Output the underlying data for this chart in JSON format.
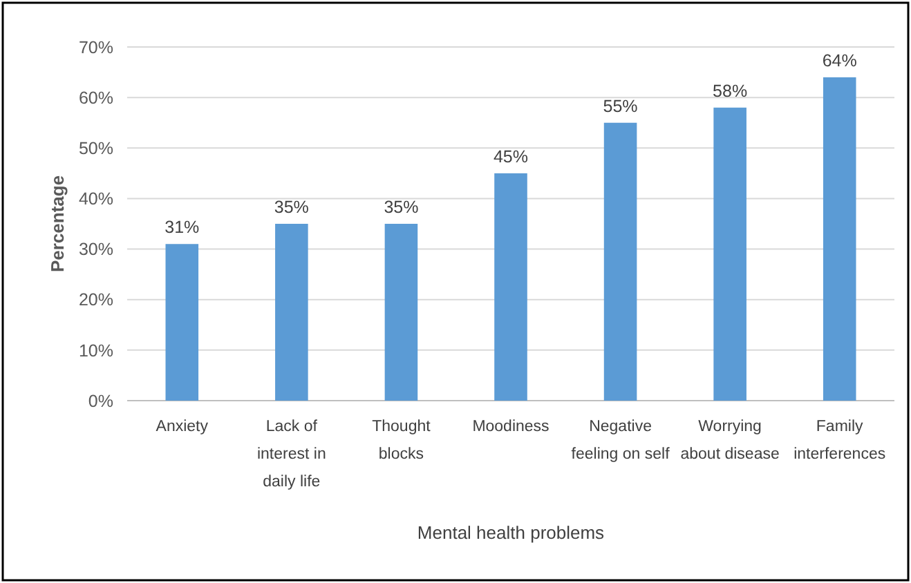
{
  "chart_data": {
    "type": "bar",
    "xlabel": "Mental health problems",
    "ylabel": "Percentage",
    "categories": [
      "Anxiety",
      "Lack of\ninterest in\ndaily life",
      "Thought\nblocks",
      "Moodiness",
      "Negative\nfeeling on self",
      "Worrying\nabout disease",
      "Family\ninterferences"
    ],
    "values": [
      31,
      35,
      35,
      45,
      55,
      58,
      64
    ],
    "value_labels": [
      "31%",
      "35%",
      "35%",
      "45%",
      "55%",
      "58%",
      "64%"
    ],
    "color": "#5b9bd5",
    "ylim": [
      0,
      70
    ],
    "yticks": [
      {
        "value": 0,
        "label": "0%"
      },
      {
        "value": 10,
        "label": "10%"
      },
      {
        "value": 20,
        "label": "20%"
      },
      {
        "value": 30,
        "label": "30%"
      },
      {
        "value": 40,
        "label": "40%"
      },
      {
        "value": 50,
        "label": "50%"
      },
      {
        "value": 60,
        "label": "60%"
      },
      {
        "value": 70,
        "label": "70%"
      }
    ],
    "grid": "y"
  }
}
